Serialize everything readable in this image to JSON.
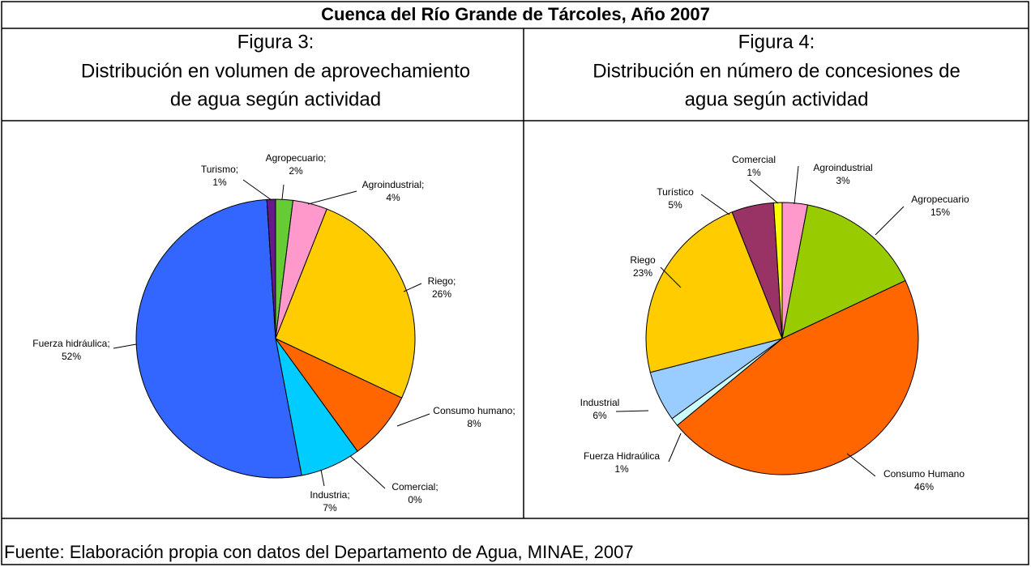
{
  "title": "Cuenca del Río Grande de Tárcoles, Año 2007",
  "chart_data": [
    {
      "type": "pie",
      "subtitle": "Figura 3:",
      "title": [
        "Distribución en volumen de aprovechamiento",
        "de agua según actividad"
      ],
      "categories": [
        "Agropecuario;",
        "Agroindustrial;",
        "Riego;",
        "Consumo humano;",
        "Comercial;",
        "Industria;",
        "Fuerza hidráulica;",
        "Turismo;"
      ],
      "values": [
        2,
        4,
        26,
        8,
        0,
        7,
        52,
        1
      ],
      "value_labels": [
        "2%",
        "4%",
        "26%",
        "8%",
        "0%",
        "7%",
        "52%",
        "1%"
      ],
      "colors": [
        "#66cc33",
        "#ff99cc",
        "#ffcc00",
        "#ff6600",
        "#ffff00",
        "#00ccff",
        "#3366ff",
        "#66198a"
      ]
    },
    {
      "type": "pie",
      "subtitle": "Figura 4:",
      "title": [
        "Distribución en número de concesiones de",
        "agua según actividad"
      ],
      "categories": [
        "Agroindustrial",
        "Agropecuario",
        "Consumo Humano",
        "Fuerza Hidraúlica",
        "Industrial",
        "Riego",
        "Turístico",
        "Comercial"
      ],
      "values": [
        3,
        15,
        46,
        1,
        6,
        23,
        5,
        1
      ],
      "value_labels": [
        "3%",
        "15%",
        "46%",
        "1%",
        "6%",
        "23%",
        "5%",
        "1%"
      ],
      "colors": [
        "#ff99cc",
        "#99cc00",
        "#ff6600",
        "#ccffff",
        "#99ccff",
        "#ffcc00",
        "#993366",
        "#ffff00"
      ]
    }
  ],
  "source": "Fuente: Elaboración propia con datos del Departamento de Agua, MINAE, 2007"
}
